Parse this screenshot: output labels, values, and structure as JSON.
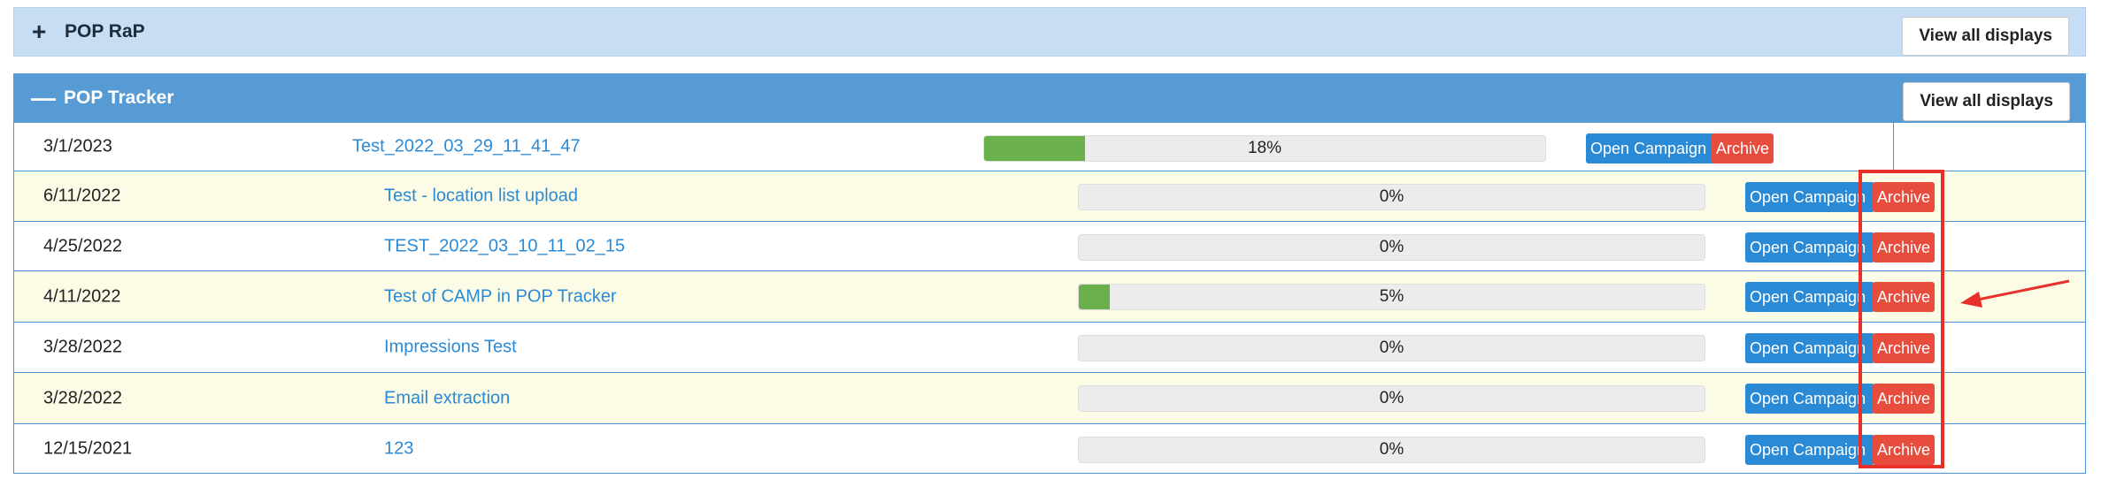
{
  "panels": [
    {
      "icon": "+",
      "title": "POP RaP",
      "button": "View all displays"
    },
    {
      "icon": "—",
      "title": "POP Tracker",
      "button": "View all displays"
    }
  ],
  "buttons": {
    "open": "Open Campaign",
    "archive": "Archive"
  },
  "rows": [
    {
      "date": "3/1/2023",
      "name": "Test_2022_03_29_11_41_47",
      "progress": 18,
      "progress_label": "18%"
    },
    {
      "date": "6/11/2022",
      "name": "Test - location list upload",
      "progress": 0,
      "progress_label": "0%"
    },
    {
      "date": "4/25/2022",
      "name": "TEST_2022_03_10_11_02_15",
      "progress": 0,
      "progress_label": "0%"
    },
    {
      "date": "4/11/2022",
      "name": "Test of CAMP in POP Tracker",
      "progress": 5,
      "progress_label": "5%"
    },
    {
      "date": "3/28/2022",
      "name": "Impressions Test",
      "progress": 0,
      "progress_label": "0%"
    },
    {
      "date": "3/28/2022",
      "name": "Email extraction",
      "progress": 0,
      "progress_label": "0%"
    },
    {
      "date": "12/15/2021",
      "name": "123",
      "progress": 0,
      "progress_label": "0%"
    }
  ]
}
